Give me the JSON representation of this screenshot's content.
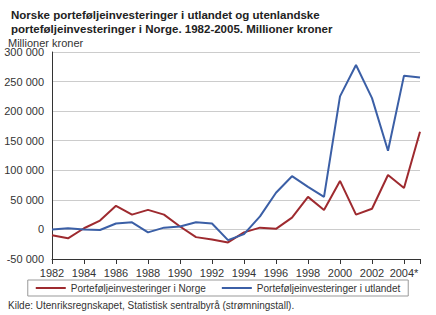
{
  "chart_data": {
    "type": "line",
    "title": "Norske porteføljeinvesteringer i utlandet og utenlandske porteføljeinvesteringer i Norge. 1982-2005. Millioner kroner",
    "y_label": "Millioner kroner",
    "source": "Kilde: Utenriksregnskapet, Statistisk sentralbyrå (strømningstall).",
    "categories": [
      "1982",
      null,
      "1984",
      null,
      "1986",
      null,
      "1988",
      null,
      "1990",
      null,
      "1992",
      null,
      "1994",
      null,
      "1996",
      null,
      "1998",
      null,
      "2000",
      null,
      "2002",
      null,
      "2004*",
      null
    ],
    "series": [
      {
        "name": "Porteføljeinvesteringer i Norge",
        "color": "#9e2a2f",
        "values": [
          -10000,
          -15000,
          2000,
          15000,
          40000,
          25000,
          33000,
          25000,
          5000,
          -13000,
          -17000,
          -22000,
          -5000,
          3000,
          1000,
          20000,
          55000,
          33000,
          82000,
          25000,
          35000,
          92000,
          70000,
          165000
        ]
      },
      {
        "name": "Porteføljeinvesteringer i utlandet",
        "color": "#3b5fa6",
        "values": [
          0,
          2000,
          0,
          -1000,
          10000,
          12000,
          -5000,
          3000,
          5000,
          12000,
          10000,
          -18000,
          -8000,
          22000,
          62000,
          90000,
          72000,
          55000,
          225000,
          278000,
          222000,
          133000,
          260000,
          257000
        ]
      }
    ],
    "ylim": [
      -50000,
      300000
    ],
    "yticks": [
      {
        "value": -50000,
        "label": "-50 000"
      },
      0,
      {
        "value": 50000,
        "label": "50 000"
      },
      {
        "value": 100000,
        "label": "100 000"
      },
      {
        "value": 150000,
        "label": "150 000"
      },
      {
        "value": 200000,
        "label": "200 000"
      },
      {
        "value": 250000,
        "label": "250 000"
      },
      {
        "value": 300000,
        "label": "300 000"
      }
    ],
    "grid": true,
    "legend": "bottom"
  }
}
